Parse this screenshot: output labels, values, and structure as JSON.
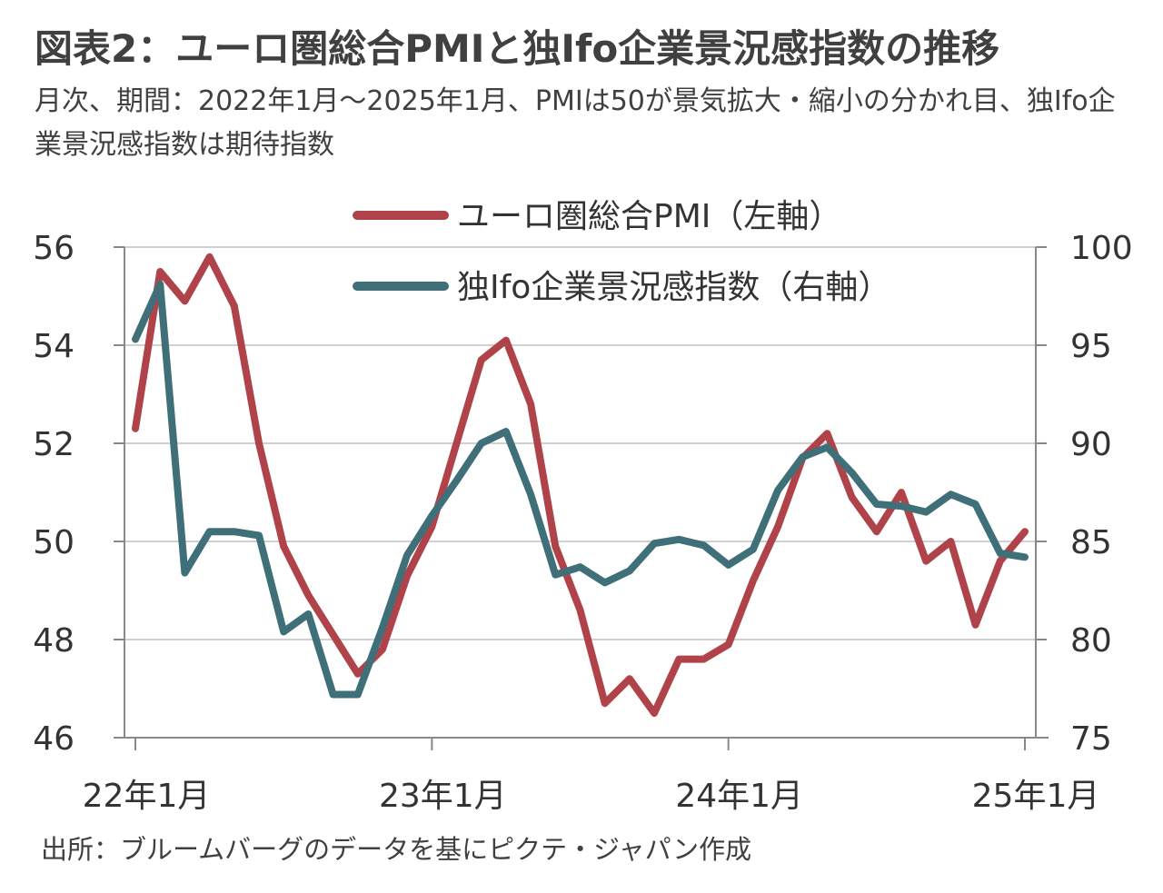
{
  "title": "図表2：ユーロ圏総合PMIと独Ifo企業景況感指数の推移",
  "subtitle": "月次、期間：2022年1月～2025年1月、PMIは50が景気拡大・縮小の分かれ目、独Ifo企業景況感指数は期待指数",
  "source": "出所：ブルームバーグのデータを基にピクテ・ジャパン作成",
  "chart_data": {
    "type": "line",
    "x": [
      "2022-01",
      "2022-02",
      "2022-03",
      "2022-04",
      "2022-05",
      "2022-06",
      "2022-07",
      "2022-08",
      "2022-09",
      "2022-10",
      "2022-11",
      "2022-12",
      "2023-01",
      "2023-02",
      "2023-03",
      "2023-04",
      "2023-05",
      "2023-06",
      "2023-07",
      "2023-08",
      "2023-09",
      "2023-10",
      "2023-11",
      "2023-12",
      "2024-01",
      "2024-02",
      "2024-03",
      "2024-04",
      "2024-05",
      "2024-06",
      "2024-07",
      "2024-08",
      "2024-09",
      "2024-10",
      "2024-11",
      "2024-12",
      "2025-01"
    ],
    "x_tick_labels": [
      "22年1月",
      "23年1月",
      "24年1月",
      "25年1月"
    ],
    "x_tick_positions": [
      "2022-01",
      "2023-01",
      "2024-01",
      "2025-01"
    ],
    "y_left": {
      "ticks": [
        "46",
        "48",
        "50",
        "52",
        "54",
        "56"
      ],
      "ylim": [
        46,
        56
      ]
    },
    "y_right": {
      "ticks": [
        "75",
        "80",
        "85",
        "90",
        "95",
        "100"
      ],
      "ylim": [
        75,
        100
      ]
    },
    "grid": true,
    "legend_position": "top-center",
    "series": [
      {
        "name": "ユーロ圏総合PMI（左軸）",
        "axis": "left",
        "color": "#B0434A",
        "values": [
          52.3,
          55.5,
          54.9,
          55.8,
          54.8,
          52.0,
          49.9,
          48.9,
          48.1,
          47.3,
          47.8,
          49.3,
          50.3,
          52.0,
          53.7,
          54.1,
          52.8,
          49.9,
          48.6,
          46.7,
          47.2,
          46.5,
          47.6,
          47.6,
          47.9,
          49.2,
          50.3,
          51.7,
          52.2,
          50.9,
          50.2,
          51.0,
          49.6,
          50.0,
          48.3,
          49.6,
          50.2
        ]
      },
      {
        "name": "独Ifo企業景況感指数（右軸）",
        "axis": "right",
        "color": "#3F6F78",
        "values": [
          95.3,
          98.1,
          83.4,
          85.5,
          85.5,
          85.3,
          80.4,
          81.3,
          77.2,
          77.2,
          80.6,
          84.3,
          86.3,
          88.1,
          90.0,
          90.6,
          87.4,
          83.3,
          83.7,
          82.9,
          83.5,
          84.9,
          85.1,
          84.8,
          83.8,
          84.6,
          87.6,
          89.3,
          89.8,
          88.5,
          86.9,
          86.8,
          86.5,
          87.4,
          86.9,
          84.4,
          84.2
        ]
      }
    ]
  }
}
